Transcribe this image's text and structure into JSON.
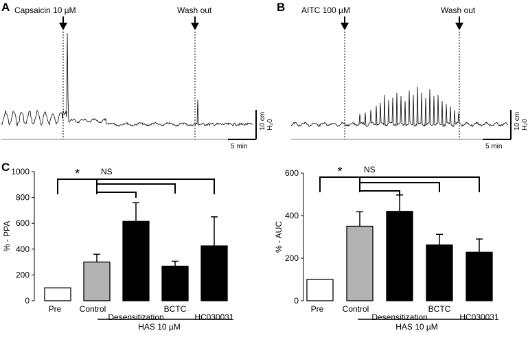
{
  "panels": {
    "A": {
      "letter": "A",
      "stim_label": "Capsaicin 10 µM",
      "wash_label": "Wash out",
      "scale_y": "10 cm",
      "scale_y_unit": "H₂0",
      "scale_x": "5 min"
    },
    "B": {
      "letter": "B",
      "stim_label": "AITC 100 µM",
      "wash_label": "Wash out",
      "scale_y": "10 cm",
      "scale_y_unit": "H₂0",
      "scale_x": "5 min"
    },
    "C": {
      "letter": "C"
    }
  },
  "group_caption": "HAS 10 µM",
  "sig_star": "*",
  "sig_ns": "NS",
  "chart_data": [
    {
      "type": "bar",
      "ylabel": "% - PPA",
      "ylim": [
        0,
        1000
      ],
      "yticks": [
        0,
        200,
        400,
        600,
        800,
        1000
      ],
      "categories": [
        "Pre",
        "Control",
        "Desensitization",
        "BCTC",
        "HC030031"
      ],
      "values": [
        100,
        300,
        615,
        268,
        425
      ],
      "errors": [
        0,
        60,
        145,
        38,
        225
      ],
      "bar_colors": [
        "#ffffff",
        "#b3b3b3",
        "#000000",
        "#000000",
        "#000000"
      ]
    },
    {
      "type": "bar",
      "ylabel": "% - AUC",
      "ylim": [
        0,
        600
      ],
      "yticks": [
        0,
        200,
        400,
        600
      ],
      "categories": [
        "Pre",
        "Control",
        "Desensitization",
        "BCTC",
        "HC030031"
      ],
      "values": [
        100,
        350,
        420,
        262,
        228
      ],
      "errors": [
        0,
        68,
        77,
        50,
        62
      ],
      "bar_colors": [
        "#ffffff",
        "#b3b3b3",
        "#000000",
        "#000000",
        "#000000"
      ]
    }
  ]
}
